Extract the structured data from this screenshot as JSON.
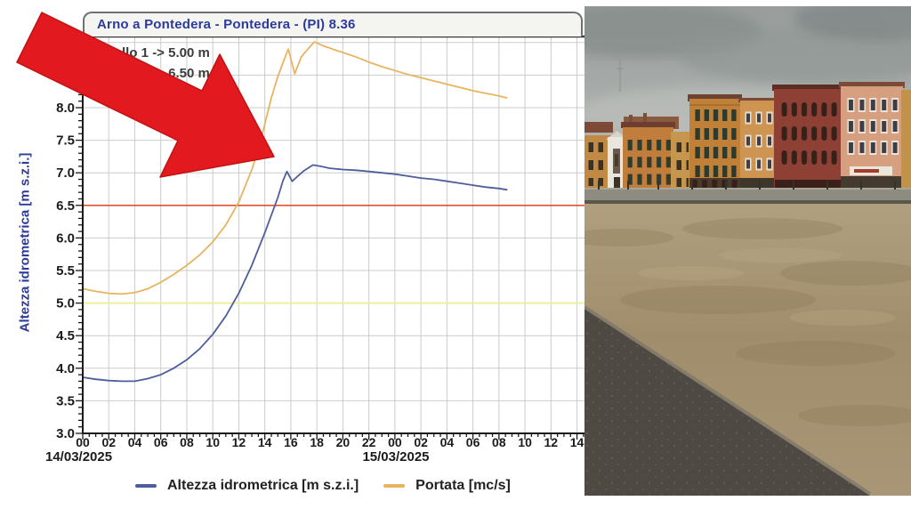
{
  "chart_data": {
    "type": "line",
    "title": "Arno a Pontedera - Pontedera -  (PI) 8.36",
    "ylabel": "Altezza idrometrica [m s.z.i.]",
    "x_unit": "hour of day",
    "x_dates": [
      "14/03/2025",
      "15/03/2025"
    ],
    "x_tick_hours": [
      0,
      2,
      4,
      6,
      8,
      10,
      12,
      14,
      16,
      18,
      20,
      22,
      24,
      26,
      28,
      30,
      32,
      34,
      36,
      38
    ],
    "x_tick_labels": [
      "00",
      "02",
      "04",
      "06",
      "08",
      "10",
      "12",
      "14",
      "16",
      "18",
      "20",
      "22",
      "00",
      "02",
      "04",
      "06",
      "08",
      "10",
      "12",
      "14"
    ],
    "y_ticks": [
      3.0,
      3.5,
      4.0,
      4.5,
      5.0,
      5.5,
      6.0,
      6.5,
      7.0,
      7.5,
      8.0
    ],
    "ylim": [
      3.0,
      9.1
    ],
    "xlim_hours": [
      0,
      38.6
    ],
    "grid": true,
    "legend_position": "bottom",
    "thresholds": [
      {
        "label_text": "Livello 1 -> 5.00 m",
        "value": 5.0,
        "color": "#eef0a0"
      },
      {
        "label_text": "Livello 2 -> 6.50 m",
        "value": 6.5,
        "color": "#e25030"
      }
    ],
    "series": [
      {
        "name": "Altezza idrometrica [m s.z.i.]",
        "color": "#4e5d9b",
        "axis": "left",
        "unit": "m s.z.i.",
        "points": [
          [
            0,
            3.86
          ],
          [
            1,
            3.83
          ],
          [
            2,
            3.81
          ],
          [
            3,
            3.8
          ],
          [
            4,
            3.8
          ],
          [
            5,
            3.84
          ],
          [
            6,
            3.9
          ],
          [
            7,
            4.0
          ],
          [
            8,
            4.13
          ],
          [
            9,
            4.3
          ],
          [
            10,
            4.52
          ],
          [
            11,
            4.8
          ],
          [
            12,
            5.15
          ],
          [
            13,
            5.58
          ],
          [
            14,
            6.08
          ],
          [
            15,
            6.62
          ],
          [
            15.4,
            6.88
          ],
          [
            15.7,
            7.02
          ],
          [
            16.1,
            6.87
          ],
          [
            16.6,
            6.96
          ],
          [
            17,
            7.03
          ],
          [
            17.7,
            7.12
          ],
          [
            18.3,
            7.1
          ],
          [
            19,
            7.07
          ],
          [
            20,
            7.05
          ],
          [
            21,
            7.04
          ],
          [
            22,
            7.02
          ],
          [
            23,
            7.0
          ],
          [
            24,
            6.98
          ],
          [
            25,
            6.95
          ],
          [
            26,
            6.92
          ],
          [
            27,
            6.9
          ],
          [
            28,
            6.87
          ],
          [
            29,
            6.84
          ],
          [
            30,
            6.81
          ],
          [
            31,
            6.78
          ],
          [
            32,
            6.76
          ],
          [
            32.6,
            6.74
          ]
        ]
      },
      {
        "name": "Portata [mc/s]",
        "color": "#e8b45f",
        "axis": "right",
        "unit": "mc/s",
        "points_note": "right discharge axis is cropped out of the screenshot; y values given in left-axis plot units",
        "points": [
          [
            0,
            5.22
          ],
          [
            1,
            5.18
          ],
          [
            2,
            5.15
          ],
          [
            3,
            5.14
          ],
          [
            4,
            5.16
          ],
          [
            5,
            5.22
          ],
          [
            6,
            5.32
          ],
          [
            7,
            5.44
          ],
          [
            8,
            5.58
          ],
          [
            9,
            5.74
          ],
          [
            10,
            5.94
          ],
          [
            11,
            6.2
          ],
          [
            12,
            6.55
          ],
          [
            13,
            7.05
          ],
          [
            13.5,
            7.35
          ],
          [
            14,
            7.75
          ],
          [
            14.5,
            8.15
          ],
          [
            15,
            8.48
          ],
          [
            15.8,
            8.9
          ],
          [
            16.3,
            8.52
          ],
          [
            16.8,
            8.78
          ],
          [
            17.8,
            9.01
          ],
          [
            18.5,
            8.95
          ],
          [
            19.5,
            8.88
          ],
          [
            21,
            8.78
          ],
          [
            22,
            8.7
          ],
          [
            23,
            8.63
          ],
          [
            24,
            8.57
          ],
          [
            25,
            8.51
          ],
          [
            26,
            8.46
          ],
          [
            27,
            8.41
          ],
          [
            28,
            8.36
          ],
          [
            29,
            8.31
          ],
          [
            30,
            8.26
          ],
          [
            31,
            8.22
          ],
          [
            32,
            8.18
          ],
          [
            32.6,
            8.15
          ]
        ]
      }
    ]
  },
  "annotation": {
    "type": "arrow",
    "color": "#e2191e",
    "points_toward": "rising limb and peak of the level/discharge curves"
  },
  "photo": {
    "scene": "Flooded Arno river in Pisa: overcast sky, row of ochre/orange/red-brick riverside palazzi, submerged embankment, muddy brown water, stone pavement in foreground"
  },
  "colors": {
    "title_text": "#2b3a9c",
    "grid": "#cbcbcb",
    "axis": "#1a1a1a"
  }
}
